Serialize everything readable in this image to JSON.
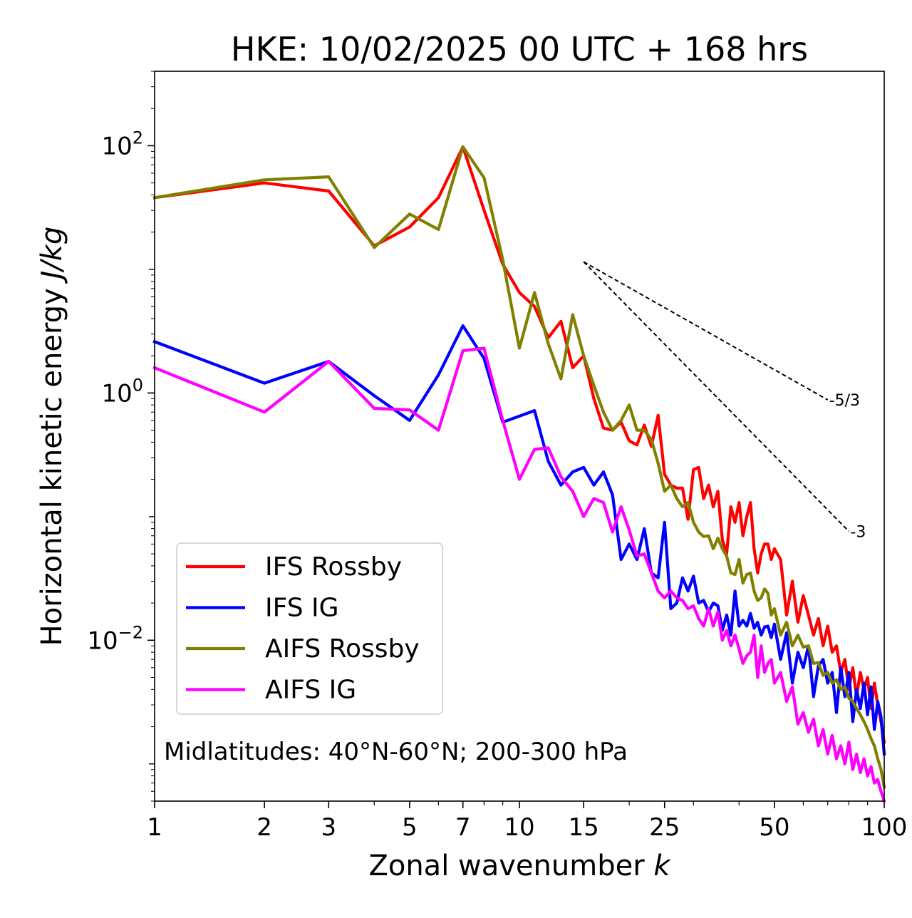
{
  "chart_data": {
    "type": "line",
    "title": "HKE: 10/02/2025 00 UTC + 168 hrs",
    "xlabel_main": "Zonal wavenumber",
    "xlabel_var": "k",
    "ylabel_main": "Horizontal kinetic energy",
    "ylabel_unit": "J/kg",
    "x_scale": "log",
    "y_scale": "log",
    "xlim": [
      1,
      100
    ],
    "ylim": [
      0.0005,
      400
    ],
    "grid": false,
    "legend_position": "lower-left",
    "annotation": "Midlatitudes: 40°N-60°N; 200-300 hPa",
    "x_ticks": [
      {
        "value": 1,
        "label": "1"
      },
      {
        "value": 2,
        "label": "2"
      },
      {
        "value": 3,
        "label": "3"
      },
      {
        "value": 5,
        "label": "5"
      },
      {
        "value": 7,
        "label": "7"
      },
      {
        "value": 10,
        "label": "10"
      },
      {
        "value": 15,
        "label": "15"
      },
      {
        "value": 25,
        "label": "25"
      },
      {
        "value": 50,
        "label": "50"
      },
      {
        "value": 100,
        "label": "100"
      }
    ],
    "y_ticks": [
      {
        "value": 0.01,
        "base": "10",
        "exp": "−2"
      },
      {
        "value": 1,
        "base": "10",
        "exp": "0"
      },
      {
        "value": 100,
        "base": "10",
        "exp": "2"
      }
    ],
    "reference_slopes": [
      {
        "label": "-5/3",
        "x": [
          15,
          70
        ],
        "y": [
          11.5,
          0.88
        ]
      },
      {
        "label": "-3",
        "x": [
          15,
          80
        ],
        "y": [
          11.5,
          0.076
        ]
      }
    ],
    "series": [
      {
        "name": "IFS Rossby",
        "color": "#ff0000",
        "x": [
          1,
          2,
          3,
          4,
          5,
          6,
          7,
          8,
          9,
          10,
          11,
          12,
          13,
          14,
          15,
          16,
          17,
          18,
          19,
          20,
          21,
          22,
          23,
          24,
          25,
          26,
          27,
          28,
          29,
          30,
          31,
          32,
          33,
          34,
          35,
          36,
          37,
          38,
          39,
          40,
          41,
          42,
          43,
          44,
          45,
          46,
          47,
          48,
          49,
          50,
          52,
          54,
          56,
          58,
          60,
          62,
          64,
          66,
          68,
          70,
          72,
          74,
          76,
          78,
          80,
          82,
          84,
          86,
          88,
          90,
          92,
          94,
          96,
          98,
          100
        ],
        "y": [
          38,
          50,
          43,
          15.5,
          22,
          38,
          98,
          30,
          11,
          6.5,
          5,
          2.8,
          3.8,
          1.6,
          2,
          0.9,
          0.52,
          0.5,
          0.58,
          0.41,
          0.38,
          0.55,
          0.37,
          0.66,
          0.22,
          0.18,
          0.17,
          0.17,
          0.095,
          0.24,
          0.25,
          0.14,
          0.18,
          0.12,
          0.16,
          0.065,
          0.05,
          0.12,
          0.09,
          0.13,
          0.07,
          0.1,
          0.13,
          0.055,
          0.035,
          0.05,
          0.06,
          0.06,
          0.045,
          0.055,
          0.045,
          0.016,
          0.03,
          0.014,
          0.023,
          0.016,
          0.011,
          0.015,
          0.009,
          0.013,
          0.008,
          0.009,
          0.0055,
          0.007,
          0.004,
          0.006,
          0.0035,
          0.0055,
          0.004,
          0.005,
          0.0028,
          0.0045,
          0.003,
          0.0022,
          0.0015
        ]
      },
      {
        "name": "IFS IG",
        "color": "#0000ff",
        "x": [
          1,
          2,
          3,
          4,
          5,
          6,
          7,
          8,
          9,
          10,
          11,
          12,
          13,
          14,
          15,
          16,
          17,
          18,
          19,
          20,
          21,
          22,
          23,
          24,
          25,
          26,
          27,
          28,
          29,
          30,
          31,
          32,
          33,
          34,
          35,
          36,
          37,
          38,
          39,
          40,
          41,
          42,
          43,
          44,
          45,
          46,
          47,
          48,
          49,
          50,
          52,
          54,
          56,
          58,
          60,
          62,
          64,
          66,
          68,
          70,
          72,
          74,
          76,
          78,
          80,
          82,
          84,
          86,
          88,
          90,
          92,
          94,
          96,
          98,
          100
        ],
        "y": [
          2.6,
          1.2,
          1.8,
          0.95,
          0.6,
          1.4,
          3.5,
          1.9,
          0.58,
          0.65,
          0.72,
          0.28,
          0.18,
          0.23,
          0.25,
          0.18,
          0.23,
          0.15,
          0.045,
          0.06,
          0.045,
          0.08,
          0.035,
          0.032,
          0.09,
          0.018,
          0.02,
          0.032,
          0.025,
          0.033,
          0.02,
          0.021,
          0.017,
          0.02,
          0.019,
          0.012,
          0.016,
          0.011,
          0.025,
          0.013,
          0.0145,
          0.013,
          0.0165,
          0.0125,
          0.014,
          0.011,
          0.0128,
          0.013,
          0.0105,
          0.0135,
          0.007,
          0.0115,
          0.0045,
          0.008,
          0.006,
          0.009,
          0.0035,
          0.0062,
          0.007,
          0.0045,
          0.0055,
          0.0026,
          0.006,
          0.0035,
          0.0055,
          0.0022,
          0.004,
          0.0028,
          0.0045,
          0.0025,
          0.0042,
          0.0019,
          0.0032,
          0.0024,
          0.0012
        ]
      },
      {
        "name": "AIFS Rossby",
        "color": "#808000",
        "x": [
          1,
          2,
          3,
          4,
          5,
          6,
          7,
          8,
          9,
          10,
          11,
          12,
          13,
          14,
          15,
          16,
          17,
          18,
          19,
          20,
          21,
          22,
          23,
          24,
          25,
          26,
          27,
          28,
          29,
          30,
          31,
          32,
          33,
          34,
          35,
          36,
          37,
          38,
          39,
          40,
          41,
          42,
          43,
          44,
          45,
          46,
          47,
          48,
          49,
          50,
          52,
          54,
          56,
          58,
          60,
          62,
          64,
          66,
          68,
          70,
          72,
          74,
          76,
          78,
          80,
          82,
          84,
          86,
          88,
          90,
          92,
          94,
          96,
          98,
          100
        ],
        "y": [
          38,
          53,
          56,
          15,
          28,
          21,
          98,
          55,
          12,
          2.3,
          6.5,
          2.5,
          1.3,
          4.3,
          2,
          1.15,
          0.7,
          0.5,
          0.6,
          0.8,
          0.5,
          0.5,
          0.42,
          0.27,
          0.16,
          0.18,
          0.14,
          0.12,
          0.13,
          0.09,
          0.075,
          0.069,
          0.07,
          0.055,
          0.067,
          0.055,
          0.048,
          0.035,
          0.034,
          0.045,
          0.029,
          0.034,
          0.035,
          0.025,
          0.021,
          0.022,
          0.026,
          0.024,
          0.016,
          0.018,
          0.011,
          0.014,
          0.009,
          0.011,
          0.0088,
          0.009,
          0.0065,
          0.0066,
          0.0052,
          0.0055,
          0.0045,
          0.0048,
          0.004,
          0.0042,
          0.0034,
          0.0032,
          0.0028,
          0.0025,
          0.0022,
          0.0019,
          0.0016,
          0.0014,
          0.0011,
          0.0009,
          0.00065
        ]
      },
      {
        "name": "AIFS IG",
        "color": "#ff00ff",
        "x": [
          1,
          2,
          3,
          4,
          5,
          6,
          7,
          8,
          9,
          10,
          11,
          12,
          13,
          14,
          15,
          16,
          17,
          18,
          19,
          20,
          21,
          22,
          23,
          24,
          25,
          26,
          27,
          28,
          29,
          30,
          31,
          32,
          33,
          34,
          35,
          36,
          37,
          38,
          39,
          40,
          41,
          42,
          43,
          44,
          45,
          46,
          47,
          48,
          49,
          50,
          52,
          54,
          56,
          58,
          60,
          62,
          64,
          66,
          68,
          70,
          72,
          74,
          76,
          78,
          80,
          82,
          84,
          86,
          88,
          90,
          92,
          94,
          96,
          98,
          100
        ],
        "y": [
          1.6,
          0.7,
          1.8,
          0.75,
          0.73,
          0.5,
          2.2,
          2.3,
          0.6,
          0.2,
          0.35,
          0.36,
          0.21,
          0.16,
          0.1,
          0.14,
          0.13,
          0.075,
          0.12,
          0.078,
          0.048,
          0.05,
          0.035,
          0.025,
          0.022,
          0.025,
          0.022,
          0.021,
          0.018,
          0.019,
          0.015,
          0.013,
          0.018,
          0.013,
          0.017,
          0.01,
          0.012,
          0.009,
          0.011,
          0.0085,
          0.0065,
          0.0075,
          0.008,
          0.011,
          0.005,
          0.009,
          0.0055,
          0.0065,
          0.007,
          0.0045,
          0.0055,
          0.0032,
          0.0042,
          0.0021,
          0.0026,
          0.0018,
          0.0023,
          0.0014,
          0.0019,
          0.0012,
          0.0017,
          0.0011,
          0.0014,
          0.001,
          0.0015,
          0.0009,
          0.0012,
          0.00085,
          0.0011,
          0.0008,
          0.00095,
          0.0007,
          0.00075,
          0.0006,
          0.0005
        ]
      }
    ]
  }
}
